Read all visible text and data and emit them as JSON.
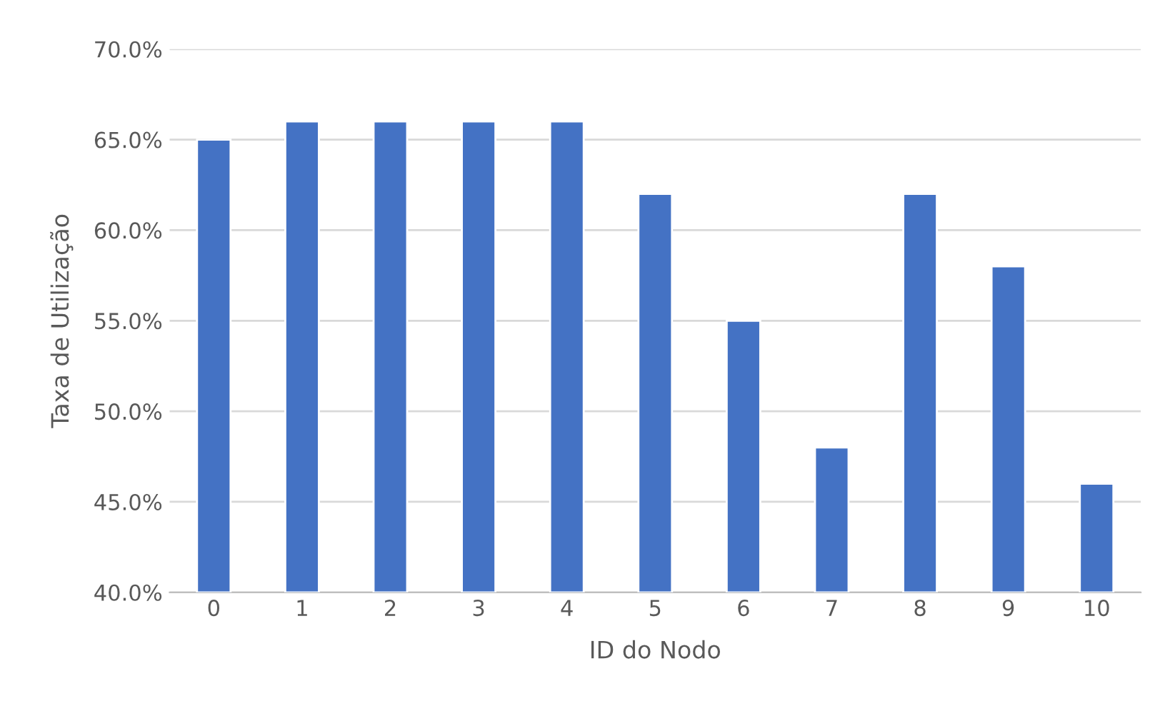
{
  "chart_data": {
    "type": "bar",
    "xlabel": "ID do Nodo",
    "ylabel": "Taxa de Utilização",
    "categories": [
      "0",
      "1",
      "2",
      "3",
      "4",
      "5",
      "6",
      "7",
      "8",
      "9",
      "10"
    ],
    "values": [
      65,
      66,
      66,
      66,
      66,
      62,
      55,
      48,
      62,
      58,
      46
    ],
    "color": "#4472c4",
    "ylim": [
      40,
      70
    ],
    "yticks": [
      {
        "value": 40,
        "label": "40.0%"
      },
      {
        "value": 45,
        "label": "45.0%"
      },
      {
        "value": 50,
        "label": "50.0%"
      },
      {
        "value": 55,
        "label": "55.0%"
      },
      {
        "value": 60,
        "label": "60.0%"
      },
      {
        "value": 65,
        "label": "65.0%"
      },
      {
        "value": 70,
        "label": "70.0%"
      }
    ],
    "grid": "y"
  }
}
